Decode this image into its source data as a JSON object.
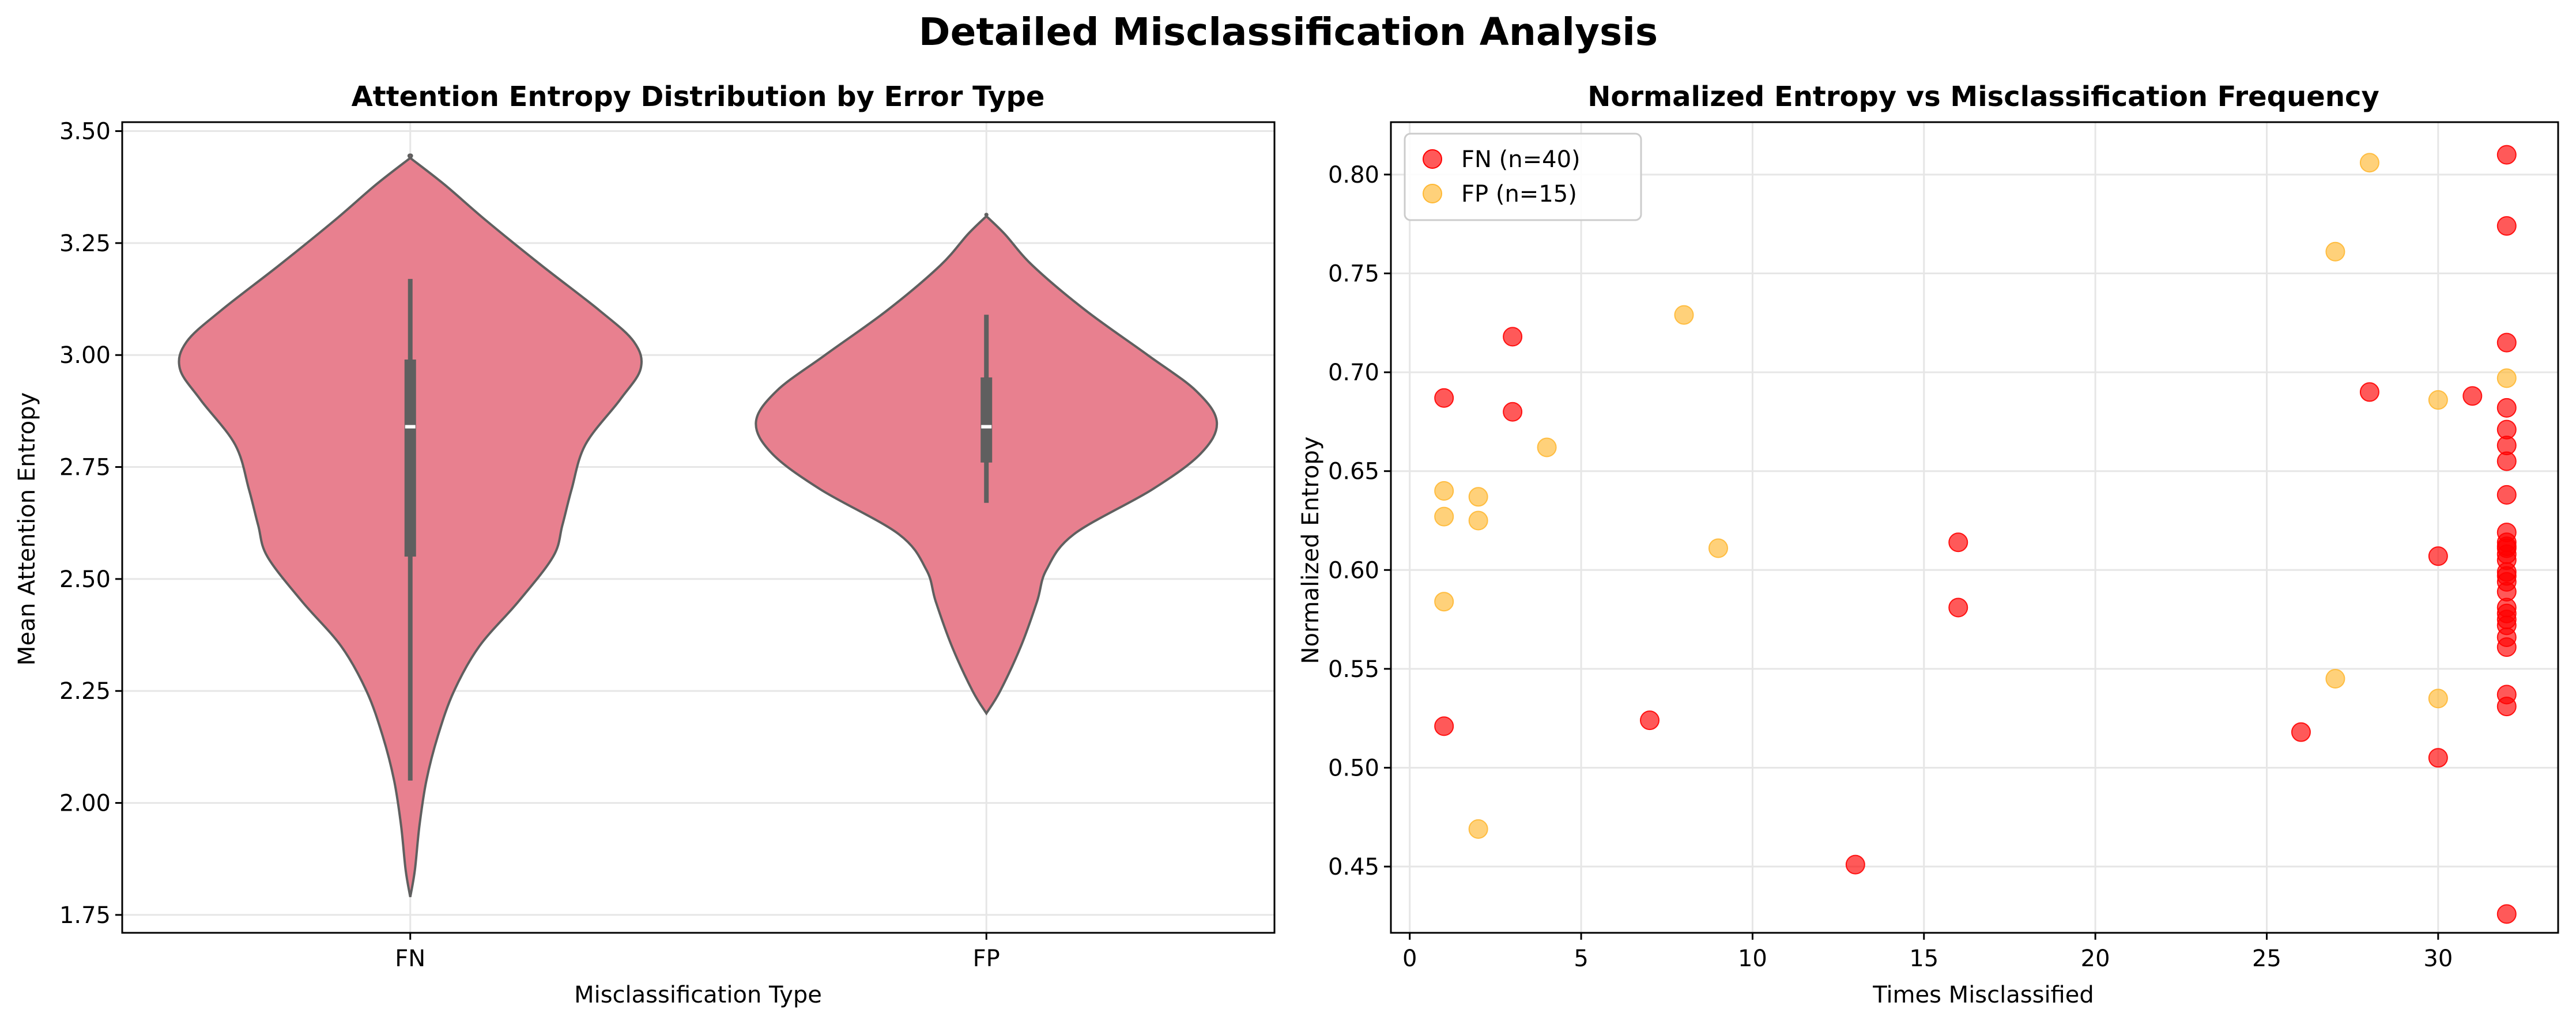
{
  "figure": {
    "title": "Detailed Misclassification Analysis"
  },
  "chart_data": [
    {
      "type": "violin",
      "title": "Attention Entropy Distribution by Error Type",
      "xlabel": "Misclassification Type",
      "ylabel": "Mean Attention Entropy",
      "categories": [
        "FN",
        "FP"
      ],
      "ylim": [
        1.71,
        3.52
      ],
      "yticks": [
        1.75,
        2.0,
        2.25,
        2.5,
        2.75,
        3.0,
        3.25,
        3.5
      ],
      "ytick_labels": [
        "1.75",
        "2.00",
        "2.25",
        "2.50",
        "2.75",
        "3.00",
        "3.25",
        "3.50"
      ],
      "grid": true,
      "fill_color": "#e8808f",
      "edge_color": "#5f5f5f",
      "violins": [
        {
          "category": "FN",
          "min": 1.79,
          "max": 3.44,
          "q1": 2.55,
          "median": 2.84,
          "q3": 2.99,
          "whisker_low": 2.05,
          "whisker_high": 3.17,
          "profile": [
            [
              1.79,
              0.0
            ],
            [
              1.85,
              0.02
            ],
            [
              1.95,
              0.04
            ],
            [
              2.05,
              0.07
            ],
            [
              2.15,
              0.12
            ],
            [
              2.25,
              0.19
            ],
            [
              2.35,
              0.3
            ],
            [
              2.45,
              0.47
            ],
            [
              2.55,
              0.62
            ],
            [
              2.62,
              0.66
            ],
            [
              2.7,
              0.7
            ],
            [
              2.8,
              0.76
            ],
            [
              2.9,
              0.91
            ],
            [
              2.97,
              1.0
            ],
            [
              3.03,
              0.97
            ],
            [
              3.1,
              0.82
            ],
            [
              3.2,
              0.57
            ],
            [
              3.3,
              0.33
            ],
            [
              3.38,
              0.15
            ],
            [
              3.44,
              0.0
            ]
          ]
        },
        {
          "category": "FP",
          "min": 2.2,
          "max": 3.31,
          "q1": 2.76,
          "median": 2.84,
          "q3": 2.95,
          "whisker_low": 2.67,
          "whisker_high": 3.09,
          "profile": [
            [
              2.2,
              0.0
            ],
            [
              2.25,
              0.06
            ],
            [
              2.35,
              0.15
            ],
            [
              2.45,
              0.22
            ],
            [
              2.52,
              0.26
            ],
            [
              2.6,
              0.38
            ],
            [
              2.7,
              0.72
            ],
            [
              2.78,
              0.93
            ],
            [
              2.85,
              1.0
            ],
            [
              2.92,
              0.91
            ],
            [
              3.0,
              0.7
            ],
            [
              3.1,
              0.43
            ],
            [
              3.2,
              0.2
            ],
            [
              3.27,
              0.08
            ],
            [
              3.31,
              0.0
            ]
          ]
        }
      ]
    },
    {
      "type": "scatter",
      "title": "Normalized Entropy vs Misclassification Frequency",
      "xlabel": "Times Misclassified",
      "ylabel": "Normalized Entropy",
      "xlim": [
        -0.55,
        33.5
      ],
      "ylim": [
        0.4165,
        0.8265
      ],
      "xticks": [
        0,
        5,
        10,
        15,
        20,
        25,
        30
      ],
      "xtick_labels": [
        "0",
        "5",
        "10",
        "15",
        "20",
        "25",
        "30"
      ],
      "yticks": [
        0.45,
        0.5,
        0.55,
        0.6,
        0.65,
        0.7,
        0.75,
        0.8
      ],
      "ytick_labels": [
        "0.45",
        "0.50",
        "0.55",
        "0.60",
        "0.65",
        "0.70",
        "0.75",
        "0.80"
      ],
      "grid": true,
      "legend_position": "top-left",
      "series": [
        {
          "name": "FN (n=40)",
          "color": "#ff0000",
          "points": [
            [
              1,
              0.687
            ],
            [
              1,
              0.521
            ],
            [
              3,
              0.718
            ],
            [
              3,
              0.68
            ],
            [
              7,
              0.524
            ],
            [
              13,
              0.451
            ],
            [
              16,
              0.614
            ],
            [
              16,
              0.581
            ],
            [
              26,
              0.518
            ],
            [
              28,
              0.69
            ],
            [
              30,
              0.607
            ],
            [
              30,
              0.505
            ],
            [
              31,
              0.688
            ],
            [
              32,
              0.81
            ],
            [
              32,
              0.774
            ],
            [
              32,
              0.715
            ],
            [
              32,
              0.682
            ],
            [
              32,
              0.671
            ],
            [
              32,
              0.663
            ],
            [
              32,
              0.655
            ],
            [
              32,
              0.638
            ],
            [
              32,
              0.619
            ],
            [
              32,
              0.614
            ],
            [
              32,
              0.611
            ],
            [
              32,
              0.608
            ],
            [
              32,
              0.605
            ],
            [
              32,
              0.599
            ],
            [
              32,
              0.594
            ],
            [
              32,
              0.589
            ],
            [
              32,
              0.581
            ],
            [
              32,
              0.578
            ],
            [
              32,
              0.575
            ],
            [
              32,
              0.572
            ],
            [
              32,
              0.566
            ],
            [
              32,
              0.561
            ],
            [
              32,
              0.537
            ],
            [
              32,
              0.531
            ],
            [
              32,
              0.426
            ],
            [
              32,
              0.612
            ],
            [
              32,
              0.597
            ]
          ]
        },
        {
          "name": "FP (n=15)",
          "color": "#ffb833",
          "points": [
            [
              1,
              0.64
            ],
            [
              1,
              0.627
            ],
            [
              1,
              0.584
            ],
            [
              2,
              0.637
            ],
            [
              2,
              0.625
            ],
            [
              2,
              0.469
            ],
            [
              4,
              0.662
            ],
            [
              8,
              0.729
            ],
            [
              9,
              0.611
            ],
            [
              27,
              0.761
            ],
            [
              27,
              0.545
            ],
            [
              28,
              0.806
            ],
            [
              30,
              0.686
            ],
            [
              30,
              0.535
            ],
            [
              32,
              0.697
            ]
          ]
        }
      ]
    }
  ]
}
